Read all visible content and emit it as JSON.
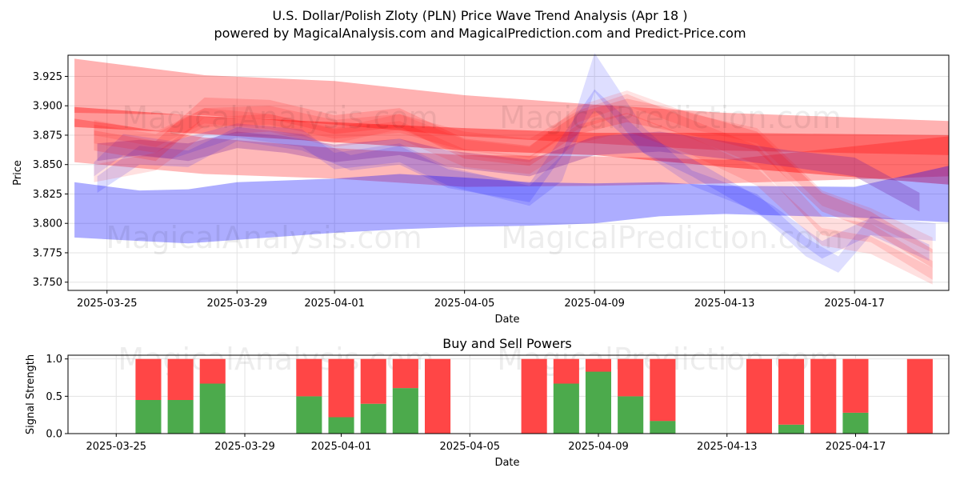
{
  "title": "U.S. Dollar/Polish Zloty (PLN) Price Wave Trend Analysis (Apr 18 )",
  "subtitle": "powered by MagicalAnalysis.com and MagicalPrediction.com and Predict-Price.com",
  "watermarks": [
    "MagicalAnalysis.com",
    "MagicalPrediction.com"
  ],
  "chart_data": [
    {
      "type": "area",
      "xlabel": "Date",
      "ylabel": "Price",
      "xlim_days": [
        -1.2,
        25.9
      ],
      "ylim": [
        3.743,
        3.943
      ],
      "x_ticks": [
        {
          "day": 0,
          "label": "2025-03-25"
        },
        {
          "day": 4,
          "label": "2025-03-29"
        },
        {
          "day": 7,
          "label": "2025-04-01"
        },
        {
          "day": 11,
          "label": "2025-04-05"
        },
        {
          "day": 15,
          "label": "2025-04-09"
        },
        {
          "day": 19,
          "label": "2025-04-13"
        },
        {
          "day": 23,
          "label": "2025-04-17"
        }
      ],
      "y_ticks": [
        {
          "value": 3.75,
          "label": "3.750"
        },
        {
          "value": 3.775,
          "label": "3.775"
        },
        {
          "value": 3.8,
          "label": "3.800"
        },
        {
          "value": 3.825,
          "label": "3.825"
        },
        {
          "value": 3.85,
          "label": "3.850"
        },
        {
          "value": 3.875,
          "label": "3.875"
        },
        {
          "value": 3.9,
          "label": "3.900"
        },
        {
          "value": 3.925,
          "label": "3.925"
        }
      ],
      "grid": true,
      "bands": [
        {
          "name": "long-red-upper",
          "color": "#ff0000",
          "opacity": 0.3,
          "points": [
            [
              -1,
              3.894,
              3.94
            ],
            [
              3,
              3.892,
              3.926
            ],
            [
              7,
              3.884,
              3.921
            ],
            [
              11,
              3.874,
              3.909
            ],
            [
              15,
              3.868,
              3.901
            ],
            [
              19,
              3.862,
              3.894
            ],
            [
              25.9,
              3.858,
              3.887
            ]
          ]
        },
        {
          "name": "long-red-mid",
          "color": "#ff0000",
          "opacity": 0.4,
          "points": [
            [
              -1,
              3.882,
              3.899
            ],
            [
              3,
              3.876,
              3.891
            ],
            [
              7,
              3.869,
              3.886
            ],
            [
              11,
              3.862,
              3.881
            ],
            [
              15,
              3.858,
              3.877
            ],
            [
              19,
              3.848,
              3.877
            ],
            [
              25.9,
              3.833,
              3.875
            ]
          ]
        },
        {
          "name": "long-red-lower",
          "color": "#ff0000",
          "opacity": 0.28,
          "points": [
            [
              -1,
              3.852,
              3.889
            ],
            [
              3,
              3.842,
              3.873
            ],
            [
              7,
              3.838,
              3.864
            ],
            [
              11,
              3.831,
              3.858
            ],
            [
              15,
              3.832,
              3.857
            ],
            [
              19,
              3.834,
              3.854
            ],
            [
              25.9,
              3.84,
              3.874
            ]
          ]
        },
        {
          "name": "long-blue",
          "color": "#0000ff",
          "opacity": 0.32,
          "points": [
            [
              -1,
              3.788,
              3.835
            ],
            [
              1,
              3.785,
              3.828
            ],
            [
              2.5,
              3.783,
              3.829
            ],
            [
              4,
              3.786,
              3.835
            ],
            [
              7,
              3.792,
              3.838
            ],
            [
              9,
              3.795,
              3.842
            ],
            [
              11,
              3.797,
              3.839
            ],
            [
              13,
              3.798,
              3.835
            ],
            [
              15,
              3.8,
              3.834
            ],
            [
              17,
              3.806,
              3.835
            ],
            [
              19,
              3.808,
              3.832
            ],
            [
              23,
              3.805,
              3.831
            ],
            [
              25.9,
              3.801,
              3.849
            ]
          ]
        },
        {
          "name": "wave-blue-2",
          "color": "#0000ff",
          "opacity": 0.13,
          "points": [
            [
              -0.4,
              3.84,
              3.852
            ],
            [
              0.5,
              3.858,
              3.876
            ],
            [
              2,
              3.855,
              3.87
            ],
            [
              4,
              3.873,
              3.885
            ],
            [
              6,
              3.865,
              3.88
            ],
            [
              7,
              3.846,
              3.86
            ],
            [
              9,
              3.852,
              3.868
            ],
            [
              10.5,
              3.832,
              3.848
            ],
            [
              13,
              3.815,
              3.832
            ],
            [
              14,
              3.836,
              3.858
            ],
            [
              15,
              3.912,
              3.945
            ],
            [
              16.5,
              3.86,
              3.882
            ],
            [
              18,
              3.832,
              3.845
            ],
            [
              20,
              3.81,
              3.825
            ],
            [
              21.5,
              3.772,
              3.788
            ],
            [
              22.5,
              3.758,
              3.772
            ],
            [
              23.5,
              3.79,
              3.806
            ],
            [
              25.5,
              3.785,
              3.8
            ]
          ]
        },
        {
          "name": "wave-blue-3",
          "color": "#0000ff",
          "opacity": 0.14,
          "points": [
            [
              -0.3,
              3.826,
              3.84
            ],
            [
              1,
              3.85,
              3.866
            ],
            [
              2.5,
              3.848,
              3.862
            ],
            [
              4,
              3.87,
              3.882
            ],
            [
              6,
              3.862,
              3.876
            ],
            [
              7.5,
              3.845,
              3.858
            ],
            [
              9,
              3.85,
              3.866
            ],
            [
              10.5,
              3.83,
              3.846
            ],
            [
              13,
              3.818,
              3.834
            ],
            [
              15,
              3.896,
              3.914
            ],
            [
              16.5,
              3.86,
              3.876
            ],
            [
              18,
              3.84,
              3.855
            ],
            [
              20.5,
              3.8,
              3.815
            ],
            [
              22,
              3.77,
              3.785
            ],
            [
              23.5,
              3.79,
              3.805
            ],
            [
              25.3,
              3.768,
              3.782
            ]
          ]
        },
        {
          "name": "wave-purple",
          "color": "#6d1a9e",
          "opacity": 0.28,
          "points": [
            [
              -0.3,
              3.853,
              3.868
            ],
            [
              1,
              3.858,
              3.871
            ],
            [
              2.5,
              3.853,
              3.868
            ],
            [
              4,
              3.864,
              3.878
            ],
            [
              5.5,
              3.86,
              3.874
            ],
            [
              7,
              3.852,
              3.867
            ],
            [
              9,
              3.858,
              3.872
            ],
            [
              10.5,
              3.848,
              3.862
            ],
            [
              13,
              3.84,
              3.854
            ],
            [
              15,
              3.858,
              3.874
            ],
            [
              17,
              3.861,
              3.878
            ],
            [
              19,
              3.855,
              3.87
            ],
            [
              21,
              3.848,
              3.862
            ],
            [
              23,
              3.84,
              3.856
            ],
            [
              25,
              3.81,
              3.826
            ]
          ]
        },
        {
          "name": "wave-red-1",
          "color": "#ff0000",
          "opacity": 0.16,
          "points": [
            [
              -0.4,
              3.862,
              3.879
            ],
            [
              1.5,
              3.853,
              3.87
            ],
            [
              3,
              3.89,
              3.907
            ],
            [
              5,
              3.889,
              3.905
            ],
            [
              7,
              3.876,
              3.892
            ],
            [
              9,
              3.882,
              3.898
            ],
            [
              11,
              3.855,
              3.872
            ],
            [
              13,
              3.849,
              3.866
            ],
            [
              14.5,
              3.876,
              3.894
            ],
            [
              16,
              3.886,
              3.906
            ],
            [
              18,
              3.875,
              3.894
            ],
            [
              20,
              3.862,
              3.878
            ],
            [
              22,
              3.81,
              3.826
            ],
            [
              23.5,
              3.794,
              3.81
            ],
            [
              25.4,
              3.762,
              3.778
            ]
          ]
        },
        {
          "name": "wave-red-2",
          "color": "#ff0000",
          "opacity": 0.13,
          "points": [
            [
              -0.4,
              3.868,
              3.884
            ],
            [
              1.5,
              3.86,
              3.876
            ],
            [
              3,
              3.882,
              3.898
            ],
            [
              5,
              3.884,
              3.9
            ],
            [
              7,
              3.872,
              3.888
            ],
            [
              9,
              3.877,
              3.893
            ],
            [
              11,
              3.862,
              3.878
            ],
            [
              13,
              3.856,
              3.872
            ],
            [
              14.5,
              3.88,
              3.896
            ],
            [
              16,
              3.893,
              3.91
            ],
            [
              18,
              3.872,
              3.888
            ],
            [
              20,
              3.85,
              3.866
            ],
            [
              22,
              3.79,
              3.806
            ],
            [
              23.5,
              3.784,
              3.8
            ],
            [
              25.4,
              3.752,
              3.768
            ]
          ]
        },
        {
          "name": "wave-red-3",
          "color": "#ff0000",
          "opacity": 0.12,
          "points": [
            [
              -0.4,
              3.835,
              3.85
            ],
            [
              1.5,
              3.845,
              3.86
            ],
            [
              3,
              3.875,
              3.89
            ],
            [
              5,
              3.878,
              3.893
            ],
            [
              7,
              3.865,
              3.88
            ],
            [
              9,
              3.872,
              3.887
            ],
            [
              11,
              3.848,
              3.863
            ],
            [
              13,
              3.842,
              3.857
            ],
            [
              14.5,
              3.868,
              3.884
            ],
            [
              16,
              3.878,
              3.894
            ],
            [
              18,
              3.858,
              3.873
            ],
            [
              20,
              3.832,
              3.847
            ],
            [
              22,
              3.781,
              3.796
            ],
            [
              23.5,
              3.774,
              3.789
            ],
            [
              25.4,
              3.748,
              3.762
            ]
          ]
        },
        {
          "name": "wave-red-4",
          "color": "#ff0000",
          "opacity": 0.11,
          "points": [
            [
              -0.4,
              3.875,
              3.888
            ],
            [
              1.5,
              3.865,
              3.878
            ],
            [
              3,
              3.885,
              3.898
            ],
            [
              5,
              3.88,
              3.893
            ],
            [
              7,
              3.868,
              3.881
            ],
            [
              9,
              3.88,
              3.893
            ],
            [
              11,
              3.858,
              3.871
            ],
            [
              13,
              3.852,
              3.865
            ],
            [
              14.5,
              3.886,
              3.9
            ],
            [
              16,
              3.9,
              3.913
            ],
            [
              18,
              3.88,
              3.893
            ],
            [
              20,
              3.868,
              3.881
            ],
            [
              22,
              3.815,
              3.828
            ],
            [
              23.5,
              3.8,
              3.813
            ],
            [
              25.4,
              3.775,
              3.788
            ]
          ]
        }
      ]
    },
    {
      "type": "bar",
      "title": "Buy and Sell Powers",
      "xlabel": "Date",
      "ylabel": "Signal Strength",
      "xlim_days": [
        -1.5,
        25.9
      ],
      "ylim": [
        0,
        1.05
      ],
      "x_ticks": [
        {
          "day": 0,
          "label": "2025-03-25"
        },
        {
          "day": 4,
          "label": "2025-03-29"
        },
        {
          "day": 7,
          "label": "2025-04-01"
        },
        {
          "day": 11,
          "label": "2025-04-05"
        },
        {
          "day": 15,
          "label": "2025-04-09"
        },
        {
          "day": 19,
          "label": "2025-04-13"
        },
        {
          "day": 23,
          "label": "2025-04-17"
        }
      ],
      "y_ticks": [
        {
          "value": 0,
          "label": "0.0"
        },
        {
          "value": 0.5,
          "label": "0.5"
        },
        {
          "value": 1,
          "label": "1.0"
        }
      ],
      "grid": true,
      "bar_width_days": 0.8,
      "series": [
        {
          "name": "Buy",
          "color": "#4caa4c"
        },
        {
          "name": "Sell",
          "color": "#ff4646"
        }
      ],
      "bars": [
        {
          "day": 1,
          "buy": 0.45,
          "sell": 0.55
        },
        {
          "day": 2,
          "buy": 0.45,
          "sell": 0.55
        },
        {
          "day": 3,
          "buy": 0.67,
          "sell": 0.33
        },
        {
          "day": 6,
          "buy": 0.5,
          "sell": 0.5
        },
        {
          "day": 7,
          "buy": 0.22,
          "sell": 0.78
        },
        {
          "day": 8,
          "buy": 0.4,
          "sell": 0.6
        },
        {
          "day": 9,
          "buy": 0.61,
          "sell": 0.39
        },
        {
          "day": 10,
          "buy": 0.0,
          "sell": 1.0
        },
        {
          "day": 13,
          "buy": 0.0,
          "sell": 1.0
        },
        {
          "day": 14,
          "buy": 0.67,
          "sell": 0.33
        },
        {
          "day": 15,
          "buy": 0.83,
          "sell": 0.17
        },
        {
          "day": 16,
          "buy": 0.5,
          "sell": 0.5
        },
        {
          "day": 17,
          "buy": 0.17,
          "sell": 0.83
        },
        {
          "day": 20,
          "buy": 0.0,
          "sell": 1.0
        },
        {
          "day": 21,
          "buy": 0.12,
          "sell": 0.88
        },
        {
          "day": 22,
          "buy": 0.0,
          "sell": 1.0
        },
        {
          "day": 23,
          "buy": 0.28,
          "sell": 0.72
        },
        {
          "day": 25,
          "buy": 0.0,
          "sell": 1.0
        }
      ]
    }
  ]
}
